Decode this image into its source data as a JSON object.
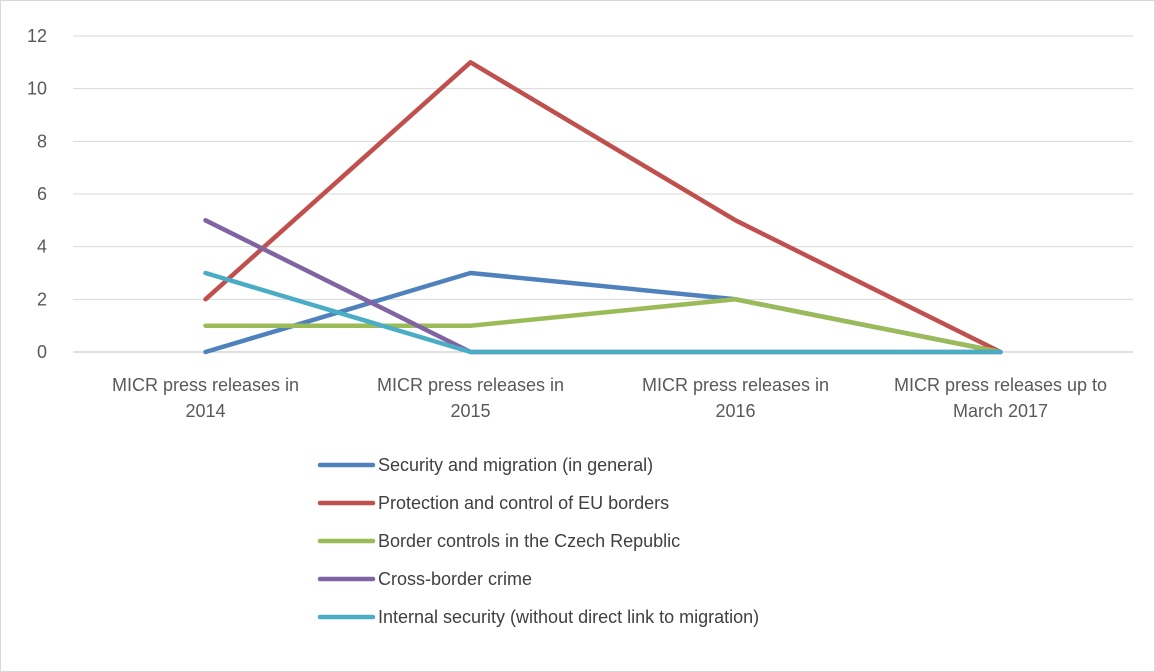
{
  "chart_data": {
    "type": "line",
    "categories": [
      [
        "MICR press releases in",
        "2014"
      ],
      [
        "MICR press releases in",
        "2015"
      ],
      [
        "MICR press releases in",
        "2016"
      ],
      [
        "MICR press releases up to",
        "March 2017"
      ]
    ],
    "ylim": [
      0,
      12
    ],
    "yticks": [
      0,
      2,
      4,
      6,
      8,
      10,
      12
    ],
    "grid": true,
    "legend_position": "bottom",
    "series": [
      {
        "name": "Security and migration (in general)",
        "color": "#4f81bd",
        "values": [
          0,
          3,
          2,
          0
        ]
      },
      {
        "name": "Protection and control of EU borders",
        "color": "#c0504d",
        "values": [
          2,
          11,
          5,
          0
        ]
      },
      {
        "name": "Border controls in the Czech Republic",
        "color": "#9bbb59",
        "values": [
          1,
          1,
          2,
          0
        ]
      },
      {
        "name": "Cross-border crime",
        "color": "#8064a2",
        "values": [
          5,
          0,
          0,
          0
        ]
      },
      {
        "name": "Internal security (without direct link to migration)",
        "color": "#4bacc6",
        "values": [
          3,
          0,
          0,
          0
        ]
      }
    ]
  }
}
